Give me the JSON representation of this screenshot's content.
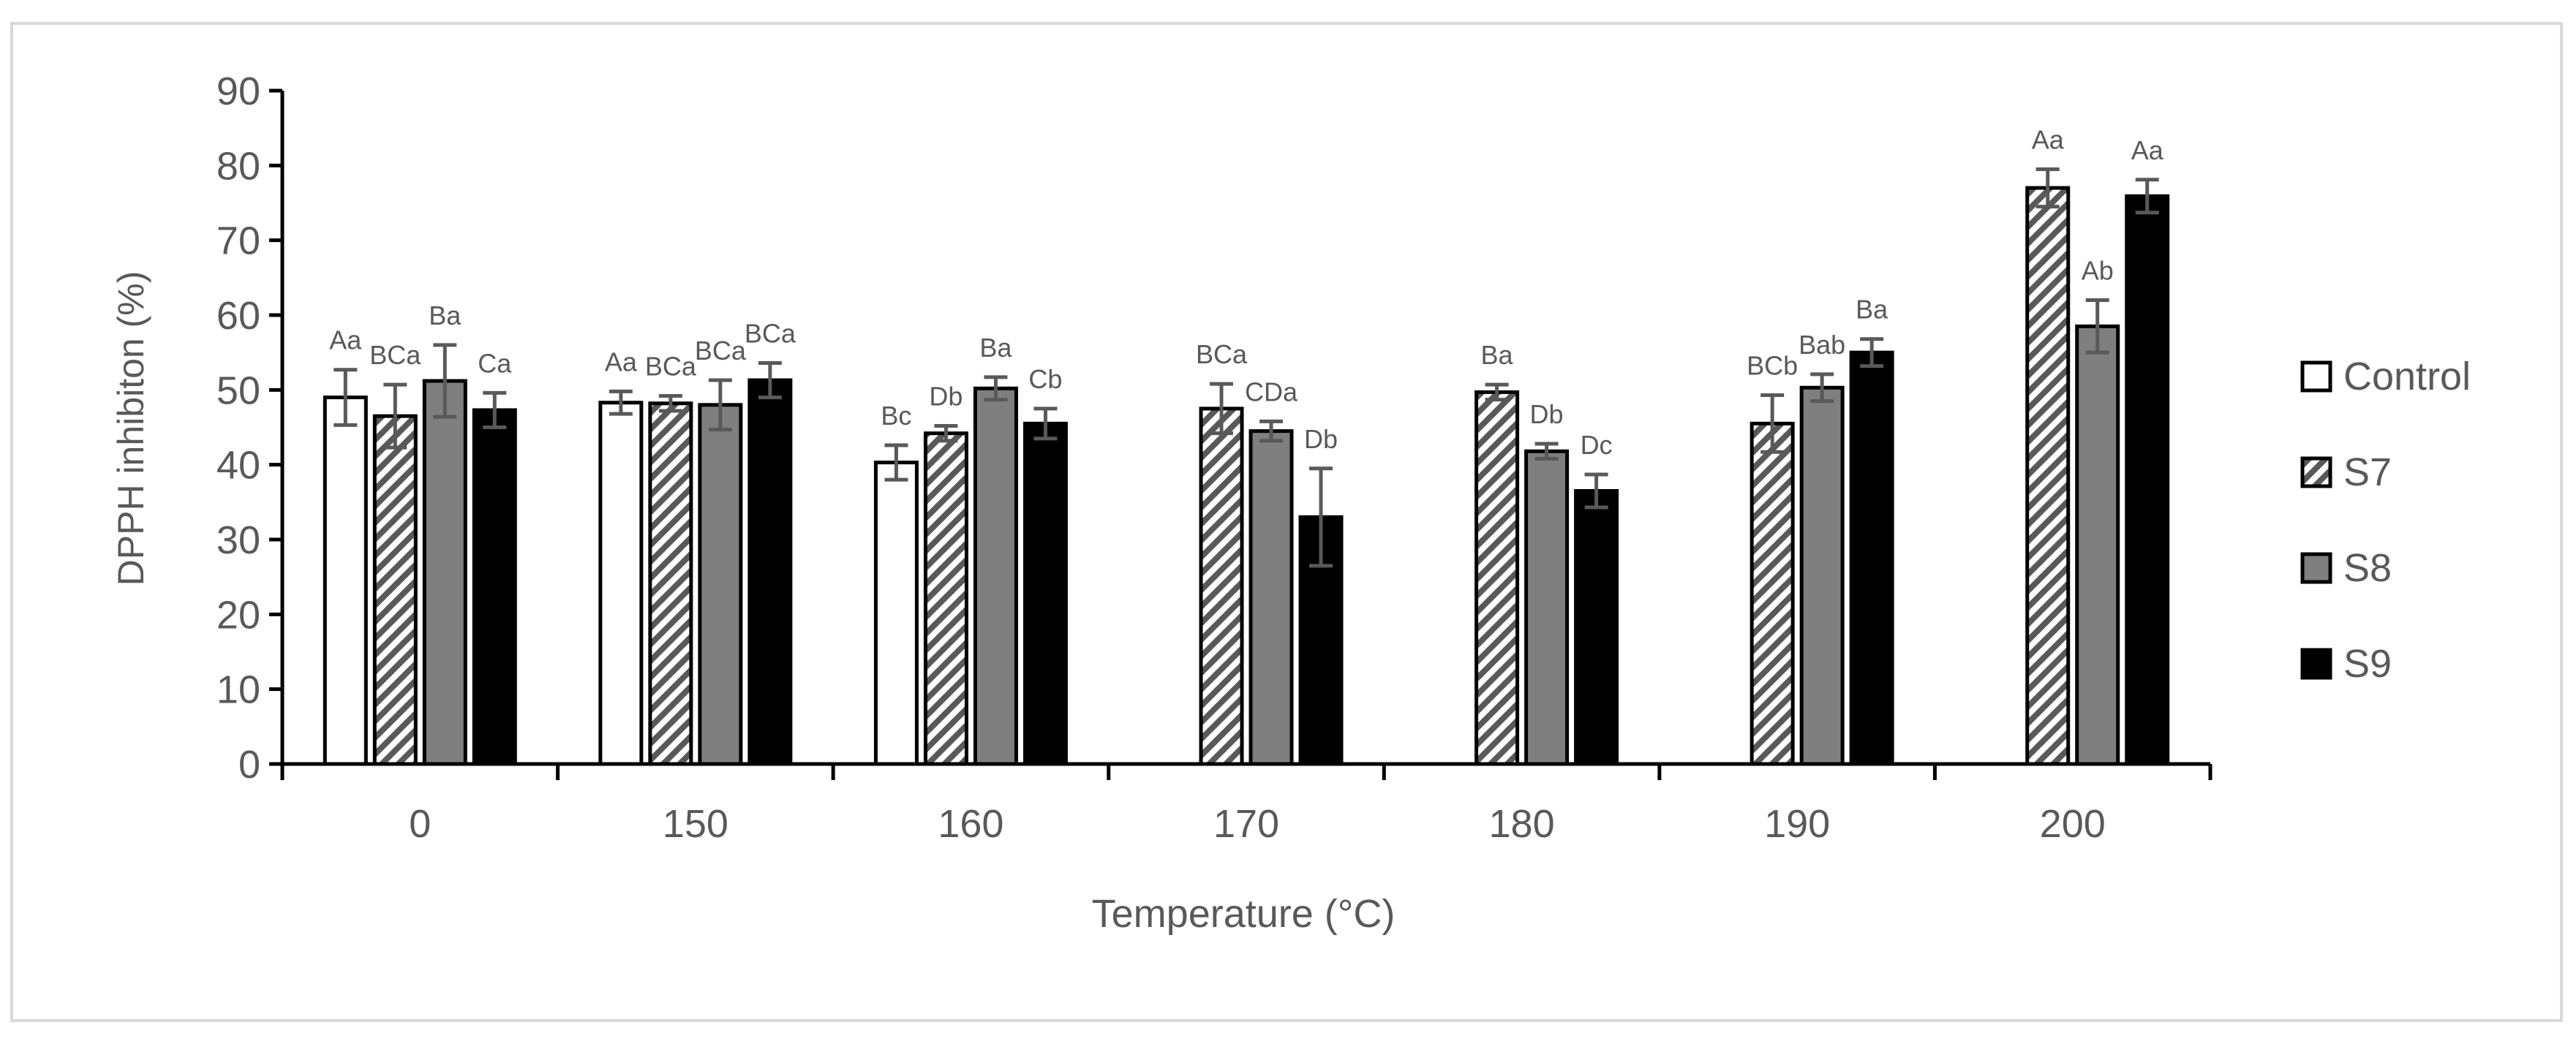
{
  "chart_data": {
    "type": "bar",
    "title": "",
    "xlabel": "Temperature (°C)",
    "ylabel": "DPPH inhibiton (%)",
    "ylim": [
      0,
      90
    ],
    "yticks": [
      "0",
      "10",
      "20",
      "30",
      "40",
      "50",
      "60",
      "70",
      "80",
      "90"
    ],
    "categories": [
      "0",
      "150",
      "160",
      "170",
      "180",
      "190",
      "200"
    ],
    "legend_position": "right",
    "series": [
      {
        "name": "Control",
        "fill": "#ffffff",
        "pattern": "none",
        "values": [
          49,
          48.3,
          40.3,
          null,
          null,
          null,
          null
        ],
        "errors": [
          3.7,
          1.5,
          2.3,
          null,
          null,
          null,
          null
        ],
        "labels": [
          "Aa",
          "Aa",
          "Bc",
          "",
          "",
          "",
          ""
        ]
      },
      {
        "name": "S7",
        "fill": "#ffffff",
        "pattern": "diagonal-stripes",
        "values": [
          46.5,
          48.2,
          44.2,
          47.5,
          49.7,
          45.5,
          77
        ],
        "errors": [
          4.2,
          1.0,
          1.0,
          3.3,
          1.0,
          3.8,
          2.5
        ],
        "labels": [
          "BCa",
          "BCa",
          "Db",
          "BCa",
          "Ba",
          "BCb",
          "Aa"
        ]
      },
      {
        "name": "S8",
        "fill": "#7f7f7f",
        "pattern": "none",
        "values": [
          51.2,
          48,
          50.2,
          44.5,
          41.8,
          50.3,
          58.5
        ],
        "errors": [
          4.8,
          3.3,
          1.5,
          1.3,
          1.0,
          1.8,
          3.5
        ],
        "labels": [
          "Ba",
          "BCa",
          "Ba",
          "CDa",
          "Db",
          "Bab",
          "Ab"
        ]
      },
      {
        "name": "S9",
        "fill": "#000000",
        "pattern": "none",
        "values": [
          47.3,
          51.3,
          45.5,
          33,
          36.5,
          55,
          75.9
        ],
        "errors": [
          2.3,
          2.3,
          2.0,
          6.5,
          2.2,
          1.8,
          2.2
        ],
        "labels": [
          "Ca",
          "BCa",
          "Cb",
          "Db",
          "Dc",
          "Ba",
          "Aa"
        ]
      }
    ],
    "colors": {
      "text": "#595959",
      "axis": "#000000",
      "error_bar": "#595959",
      "frame": "#d9d9d9"
    }
  }
}
